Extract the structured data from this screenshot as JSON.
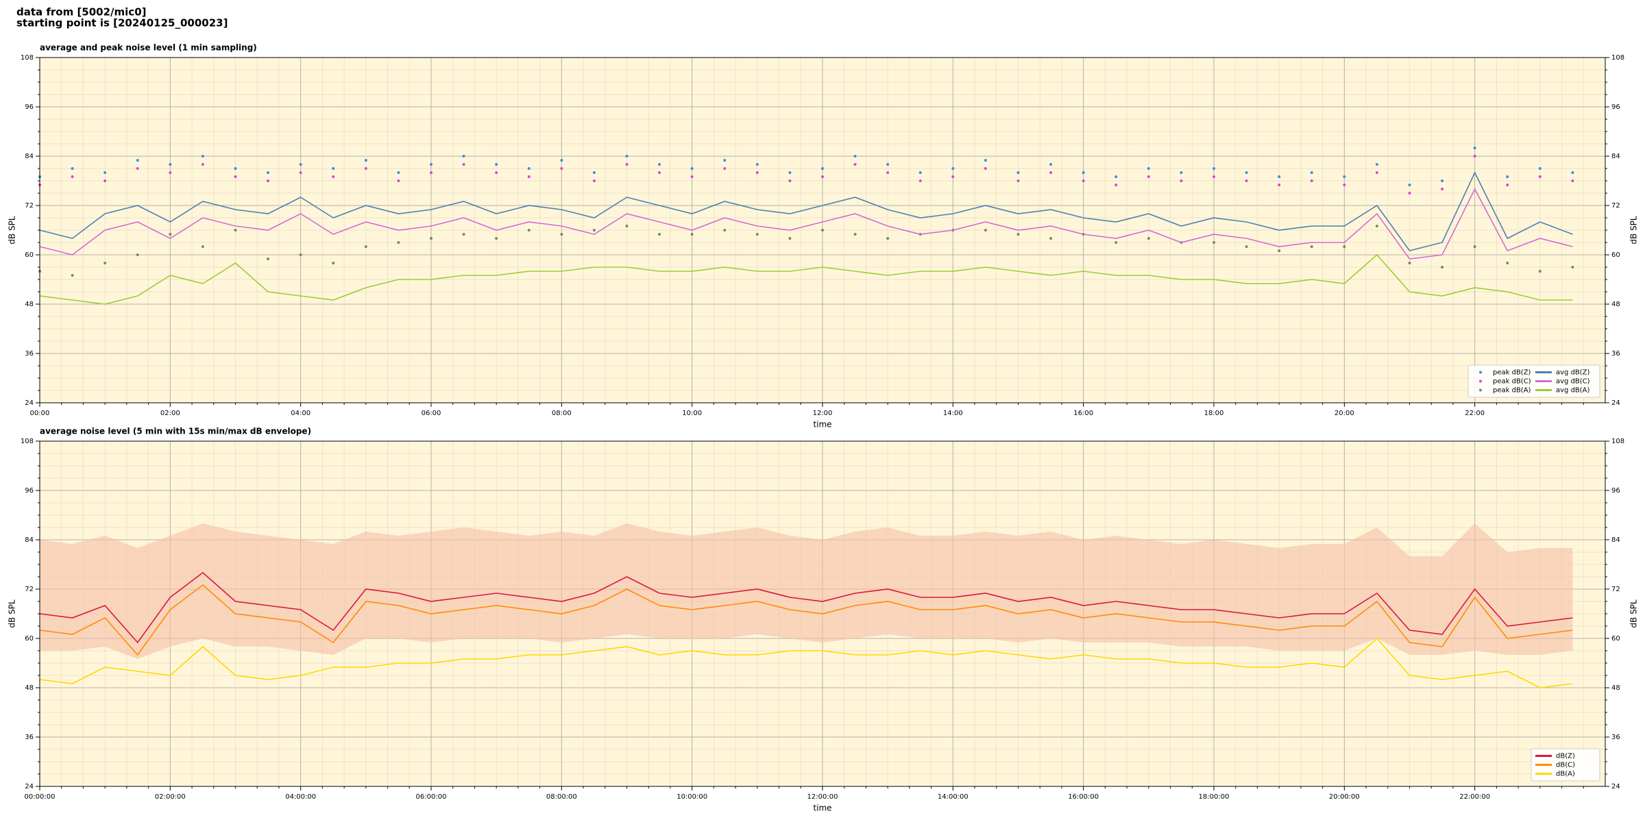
{
  "header": {
    "lines": [
      "data from [5002/mic0]",
      "starting point is [20240125_000023]"
    ]
  },
  "chart_data": [
    {
      "type": "line",
      "title": "average and peak noise level (1 min sampling)",
      "xlabel": "time",
      "ylabel": "dB SPL",
      "background": "#fff6da",
      "grid": true,
      "legend": "lower right",
      "legend_columns": 2,
      "xlim": [
        0,
        24
      ],
      "ylim": [
        24,
        108
      ],
      "yticks": [
        24,
        36,
        48,
        60,
        72,
        84,
        96,
        108
      ],
      "xticks": [
        {
          "value": 0,
          "label": "00:00"
        },
        {
          "value": 2,
          "label": "02:00"
        },
        {
          "value": 4,
          "label": "04:00"
        },
        {
          "value": 6,
          "label": "06:00"
        },
        {
          "value": 8,
          "label": "08:00"
        },
        {
          "value": 10,
          "label": "10:00"
        },
        {
          "value": 12,
          "label": "12:00"
        },
        {
          "value": 14,
          "label": "14:00"
        },
        {
          "value": 16,
          "label": "16:00"
        },
        {
          "value": 18,
          "label": "18:00"
        },
        {
          "value": 20,
          "label": "20:00"
        },
        {
          "value": 22,
          "label": "22:00"
        }
      ],
      "x": [
        0,
        0.5,
        1,
        1.5,
        2,
        2.5,
        3,
        3.5,
        4,
        4.5,
        5,
        5.5,
        6,
        6.5,
        7,
        7.5,
        8,
        8.5,
        9,
        9.5,
        10,
        10.5,
        11,
        11.5,
        12,
        12.5,
        13,
        13.5,
        14,
        14.5,
        15,
        15.5,
        16,
        16.5,
        17,
        17.5,
        18,
        18.5,
        19,
        19.5,
        20,
        20.5,
        21,
        21.5,
        22,
        22.5,
        23,
        23.5
      ],
      "series": [
        {
          "name": "peak dB(Z)",
          "type": "scatter",
          "color": "#3a8ee0",
          "values": [
            79,
            81,
            80,
            83,
            82,
            84,
            81,
            80,
            82,
            81,
            83,
            80,
            82,
            84,
            82,
            81,
            83,
            80,
            84,
            82,
            81,
            83,
            82,
            80,
            81,
            84,
            82,
            80,
            81,
            83,
            80,
            82,
            80,
            79,
            81,
            80,
            81,
            80,
            79,
            80,
            79,
            82,
            77,
            78,
            86,
            79,
            81,
            80
          ]
        },
        {
          "name": "peak dB(C)",
          "type": "scatter",
          "color": "#e040e0",
          "values": [
            77,
            79,
            78,
            81,
            80,
            82,
            79,
            78,
            80,
            79,
            81,
            78,
            80,
            82,
            80,
            79,
            81,
            78,
            82,
            80,
            79,
            81,
            80,
            78,
            79,
            82,
            80,
            78,
            79,
            81,
            78,
            80,
            78,
            77,
            79,
            78,
            79,
            78,
            77,
            78,
            77,
            80,
            75,
            76,
            84,
            77,
            79,
            78
          ]
        },
        {
          "name": "peak dB(A)",
          "type": "scatter",
          "color": "#6f8f5c",
          "values": [
            56,
            55,
            58,
            60,
            65,
            62,
            66,
            59,
            60,
            58,
            62,
            63,
            64,
            65,
            64,
            66,
            65,
            66,
            67,
            65,
            65,
            66,
            65,
            64,
            66,
            65,
            64,
            65,
            66,
            66,
            65,
            64,
            65,
            63,
            64,
            63,
            63,
            62,
            61,
            62,
            62,
            67,
            58,
            57,
            62,
            58,
            56,
            57
          ]
        },
        {
          "name": "avg dB(Z)",
          "type": "line",
          "color": "#4f7fb0",
          "values": [
            66,
            64,
            70,
            72,
            68,
            73,
            71,
            70,
            74,
            69,
            72,
            70,
            71,
            73,
            70,
            72,
            71,
            69,
            74,
            72,
            70,
            73,
            71,
            70,
            72,
            74,
            71,
            69,
            70,
            72,
            70,
            71,
            69,
            68,
            70,
            67,
            69,
            68,
            66,
            67,
            67,
            72,
            61,
            63,
            80,
            64,
            68,
            65
          ]
        },
        {
          "name": "avg dB(C)",
          "type": "line",
          "color": "#d36ad6",
          "values": [
            62,
            60,
            66,
            68,
            64,
            69,
            67,
            66,
            70,
            65,
            68,
            66,
            67,
            69,
            66,
            68,
            67,
            65,
            70,
            68,
            66,
            69,
            67,
            66,
            68,
            70,
            67,
            65,
            66,
            68,
            66,
            67,
            65,
            64,
            66,
            63,
            65,
            64,
            62,
            63,
            63,
            70,
            59,
            60,
            76,
            61,
            64,
            62
          ]
        },
        {
          "name": "avg dB(A)",
          "type": "line",
          "color": "#9acd32",
          "values": [
            50,
            49,
            48,
            50,
            55,
            53,
            58,
            51,
            50,
            49,
            52,
            54,
            54,
            55,
            55,
            56,
            56,
            57,
            57,
            56,
            56,
            57,
            56,
            56,
            57,
            56,
            55,
            56,
            56,
            57,
            56,
            55,
            56,
            55,
            55,
            54,
            54,
            53,
            53,
            54,
            53,
            60,
            51,
            50,
            52,
            51,
            49,
            49
          ]
        }
      ]
    },
    {
      "type": "line",
      "title": "average noise level (5 min with 15s min/max dB envelope)",
      "xlabel": "time",
      "ylabel": "dB SPL",
      "background": "#fff6da",
      "grid": true,
      "legend": "lower right",
      "legend_columns": 1,
      "xlim": [
        0,
        24
      ],
      "ylim": [
        24,
        108
      ],
      "yticks": [
        24,
        36,
        48,
        60,
        72,
        84,
        96,
        108
      ],
      "xticks": [
        {
          "value": 0,
          "label": "00:00:00"
        },
        {
          "value": 2,
          "label": "02:00:00"
        },
        {
          "value": 4,
          "label": "04:00:00"
        },
        {
          "value": 6,
          "label": "06:00:00"
        },
        {
          "value": 8,
          "label": "08:00:00"
        },
        {
          "value": 10,
          "label": "10:00:00"
        },
        {
          "value": 12,
          "label": "12:00:00"
        },
        {
          "value": 14,
          "label": "14:00:00"
        },
        {
          "value": 16,
          "label": "16:00:00"
        },
        {
          "value": 18,
          "label": "18:00:00"
        },
        {
          "value": 20,
          "label": "20:00:00"
        },
        {
          "value": 22,
          "label": "22:00:00"
        }
      ],
      "x": [
        0,
        0.5,
        1,
        1.5,
        2,
        2.5,
        3,
        3.5,
        4,
        4.5,
        5,
        5.5,
        6,
        6.5,
        7,
        7.5,
        8,
        8.5,
        9,
        9.5,
        10,
        10.5,
        11,
        11.5,
        12,
        12.5,
        13,
        13.5,
        14,
        14.5,
        15,
        15.5,
        16,
        16.5,
        17,
        17.5,
        18,
        18.5,
        19,
        19.5,
        20,
        20.5,
        21,
        21.5,
        22,
        22.5,
        23,
        23.5
      ],
      "envelope": {
        "color": "#f5bfa8",
        "high": [
          84,
          83,
          85,
          82,
          85,
          88,
          86,
          85,
          84,
          83,
          86,
          85,
          86,
          87,
          86,
          85,
          86,
          85,
          88,
          86,
          85,
          86,
          87,
          85,
          84,
          86,
          87,
          85,
          85,
          86,
          85,
          86,
          84,
          85,
          84,
          83,
          84,
          83,
          82,
          83,
          83,
          87,
          80,
          80,
          88,
          81,
          82,
          82
        ],
        "low": [
          57,
          57,
          58,
          55,
          58,
          60,
          58,
          58,
          57,
          56,
          60,
          60,
          59,
          60,
          60,
          60,
          59,
          60,
          61,
          60,
          60,
          60,
          61,
          60,
          59,
          60,
          61,
          60,
          60,
          60,
          59,
          60,
          59,
          59,
          59,
          58,
          58,
          58,
          57,
          57,
          57,
          60,
          56,
          56,
          57,
          56,
          56,
          57
        ]
      },
      "series": [
        {
          "name": "dB(Z)",
          "type": "line",
          "color": "#dc143c",
          "values": [
            66,
            65,
            68,
            59,
            70,
            76,
            69,
            68,
            67,
            62,
            72,
            71,
            69,
            70,
            71,
            70,
            69,
            71,
            75,
            71,
            70,
            71,
            72,
            70,
            69,
            71,
            72,
            70,
            70,
            71,
            69,
            70,
            68,
            69,
            68,
            67,
            67,
            66,
            65,
            66,
            66,
            71,
            62,
            61,
            72,
            63,
            64,
            65
          ]
        },
        {
          "name": "dB(C)",
          "type": "line",
          "color": "#ff8c00",
          "values": [
            62,
            61,
            65,
            56,
            67,
            73,
            66,
            65,
            64,
            59,
            69,
            68,
            66,
            67,
            68,
            67,
            66,
            68,
            72,
            68,
            67,
            68,
            69,
            67,
            66,
            68,
            69,
            67,
            67,
            68,
            66,
            67,
            65,
            66,
            65,
            64,
            64,
            63,
            62,
            63,
            63,
            69,
            59,
            58,
            70,
            60,
            61,
            62
          ]
        },
        {
          "name": "dB(A)",
          "type": "line",
          "color": "#ffd700",
          "values": [
            50,
            49,
            53,
            52,
            51,
            58,
            51,
            50,
            51,
            53,
            53,
            54,
            54,
            55,
            55,
            56,
            56,
            57,
            58,
            56,
            57,
            56,
            56,
            57,
            57,
            56,
            56,
            57,
            56,
            57,
            56,
            55,
            56,
            55,
            55,
            54,
            54,
            53,
            53,
            54,
            53,
            60,
            51,
            50,
            51,
            52,
            48,
            49
          ]
        }
      ]
    }
  ]
}
